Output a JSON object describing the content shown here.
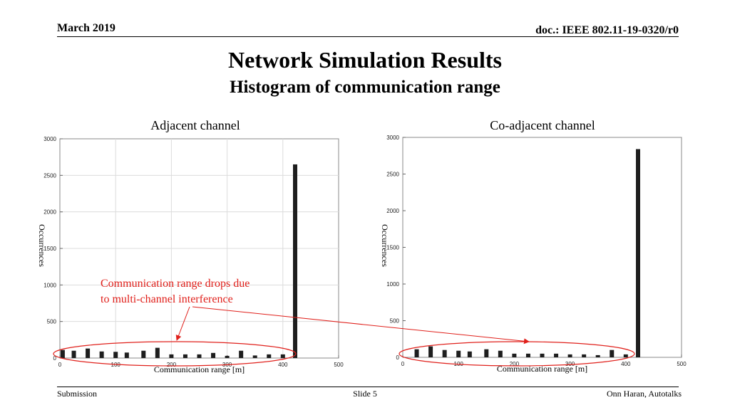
{
  "header": {
    "date": "March 2019",
    "doc": "doc.: IEEE 802.11-19-0320/r0"
  },
  "title": "Network Simulation Results",
  "subtitle": "Histogram of communication range",
  "annotation": {
    "line1": "Communication range drops due",
    "line2": "to multi-channel interference",
    "color": "#e0201b"
  },
  "footer": {
    "left": "Submission",
    "center": "Slide 5",
    "right": "Onn Haran, Autotalks"
  },
  "chart_data": [
    {
      "type": "bar",
      "title": "Adjacent channel",
      "xlabel": "Communication range [m]",
      "ylabel": "Occurrences",
      "xlim": [
        0,
        500
      ],
      "ylim": [
        0,
        3000
      ],
      "xticks": [
        0,
        100,
        200,
        300,
        400,
        500
      ],
      "yticks": [
        0,
        500,
        1000,
        1500,
        2000,
        2500,
        3000
      ],
      "grid": true,
      "x": [
        5,
        25,
        50,
        75,
        100,
        120,
        150,
        175,
        200,
        225,
        250,
        275,
        300,
        325,
        350,
        375,
        400,
        422
      ],
      "values": [
        110,
        100,
        130,
        90,
        85,
        75,
        100,
        140,
        50,
        50,
        50,
        70,
        30,
        100,
        35,
        50,
        50,
        2650
      ]
    },
    {
      "type": "bar",
      "title": "Co-adjacent channel",
      "xlabel": "Communication range [m]",
      "ylabel": "Occurrences",
      "xlim": [
        0,
        500
      ],
      "ylim": [
        0,
        3000
      ],
      "xticks": [
        0,
        100,
        200,
        300,
        400,
        500
      ],
      "yticks": [
        0,
        500,
        1000,
        1500,
        2000,
        2500,
        3000
      ],
      "grid": false,
      "x": [
        25,
        50,
        75,
        100,
        120,
        150,
        175,
        200,
        225,
        250,
        275,
        300,
        325,
        350,
        375,
        400,
        422
      ],
      "values": [
        110,
        150,
        100,
        90,
        80,
        110,
        90,
        50,
        50,
        50,
        50,
        40,
        40,
        30,
        100,
        40,
        2840
      ]
    }
  ]
}
